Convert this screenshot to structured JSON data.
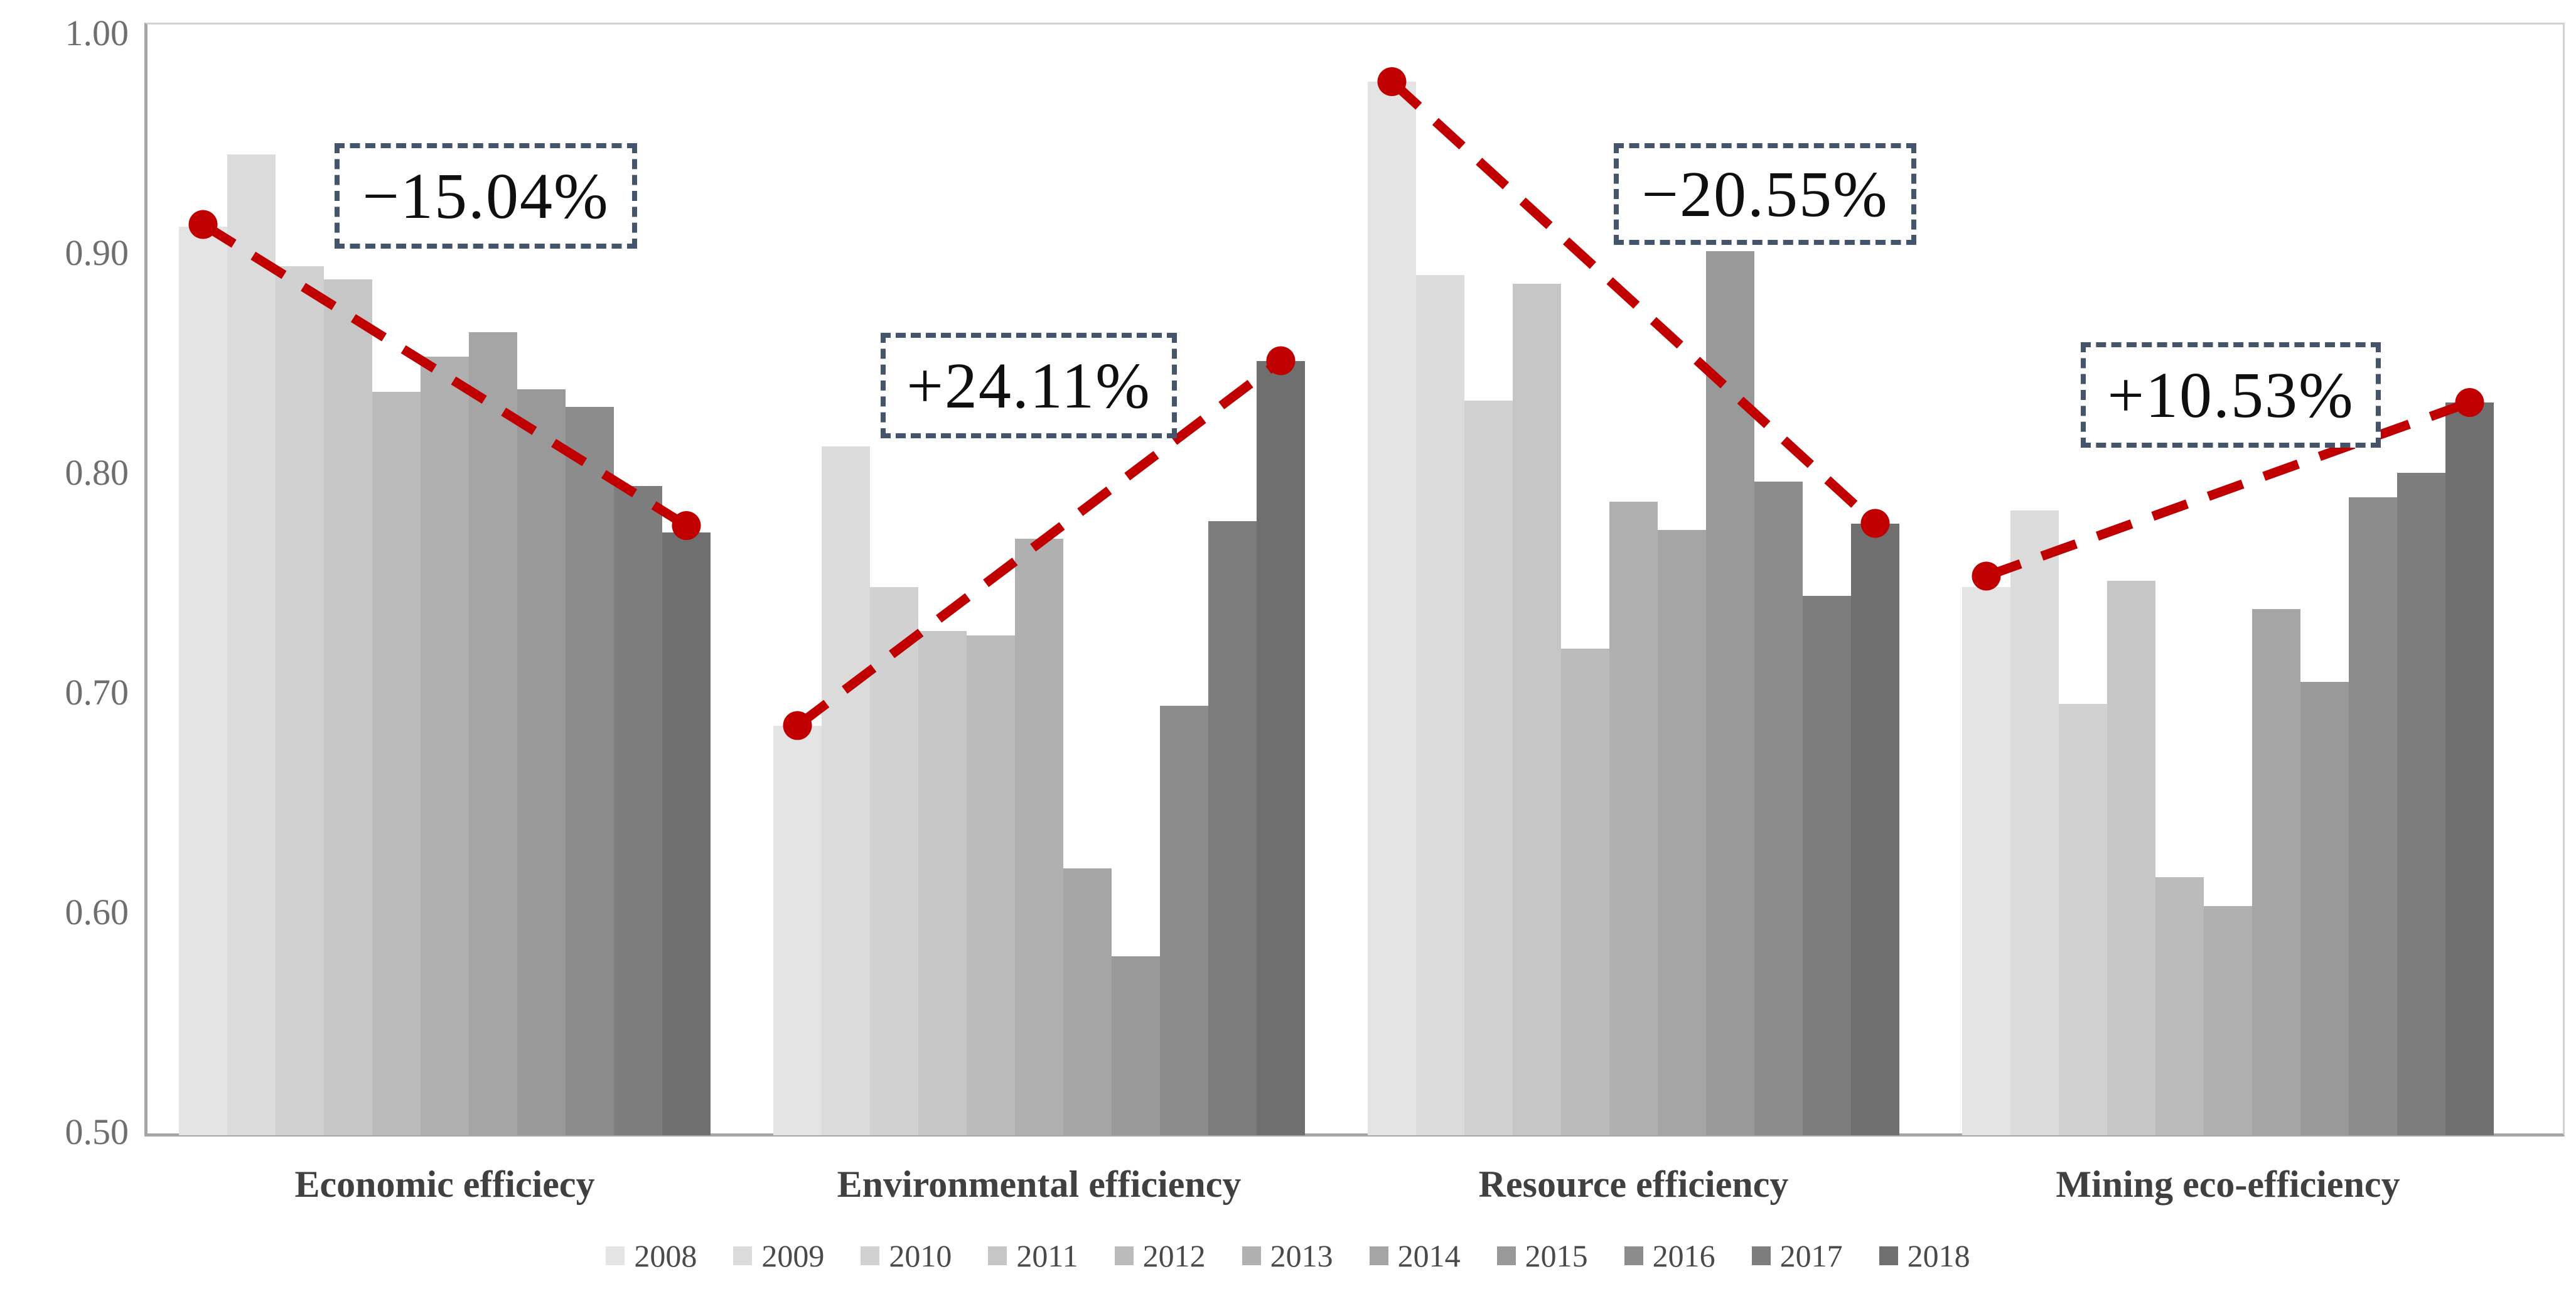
{
  "chart_data": {
    "type": "bar",
    "title": "",
    "y_axis": {
      "min": 0.5,
      "max": 1.0,
      "tick_labels": [
        "1.00",
        "0.90",
        "0.80",
        "0.70",
        "0.60",
        "0.50"
      ],
      "tick_values": [
        1.0,
        0.9,
        0.8,
        0.7,
        0.6,
        0.5
      ]
    },
    "grid": false,
    "legend_position": "bottom",
    "years": [
      "2008",
      "2009",
      "2010",
      "2011",
      "2012",
      "2013",
      "2014",
      "2015",
      "2016",
      "2017",
      "2018"
    ],
    "year_colors": [
      "#e4e4e4",
      "#dbdbdb",
      "#d1d1d1",
      "#c6c6c6",
      "#bbbbbb",
      "#b0b0b0",
      "#a5a5a5",
      "#999999",
      "#8c8c8c",
      "#7d7d7d",
      "#6f6f6f"
    ],
    "groups": [
      {
        "label": "Economic efficiecy",
        "values": [
          0.912,
          0.945,
          0.894,
          0.888,
          0.837,
          0.853,
          0.864,
          0.838,
          0.83,
          0.794,
          0.773
        ],
        "trend": {
          "start": 0.913,
          "end": 0.776,
          "annotation": "−15.04%"
        }
      },
      {
        "label": "Environmental efficiency",
        "values": [
          0.685,
          0.812,
          0.748,
          0.728,
          0.726,
          0.77,
          0.62,
          0.58,
          0.694,
          0.778,
          0.851
        ],
        "trend": {
          "start": 0.685,
          "end": 0.851,
          "annotation": "+24.11%"
        }
      },
      {
        "label": "Resource efficiency",
        "values": [
          0.978,
          0.89,
          0.833,
          0.886,
          0.72,
          0.787,
          0.774,
          0.901,
          0.796,
          0.744,
          0.777
        ],
        "trend": {
          "start": 0.978,
          "end": 0.777,
          "annotation": "−20.55%"
        }
      },
      {
        "label": "Mining eco-efficiency",
        "values": [
          0.748,
          0.783,
          0.695,
          0.751,
          0.616,
          0.603,
          0.738,
          0.705,
          0.789,
          0.8,
          0.832
        ],
        "trend": {
          "start": 0.753,
          "end": 0.832,
          "annotation": "+10.53%"
        }
      }
    ],
    "colors": {
      "trend_line": "#c00000",
      "trend_dot": "#c00000",
      "annotation_border": "#44546a",
      "annotation_text": "#0f0f0f",
      "axis_line": "#a6a6a6",
      "plot_border": "#d2d2d2",
      "tick_text": "#6e6e6e",
      "label_text": "#404040",
      "background": "#ffffff"
    }
  }
}
